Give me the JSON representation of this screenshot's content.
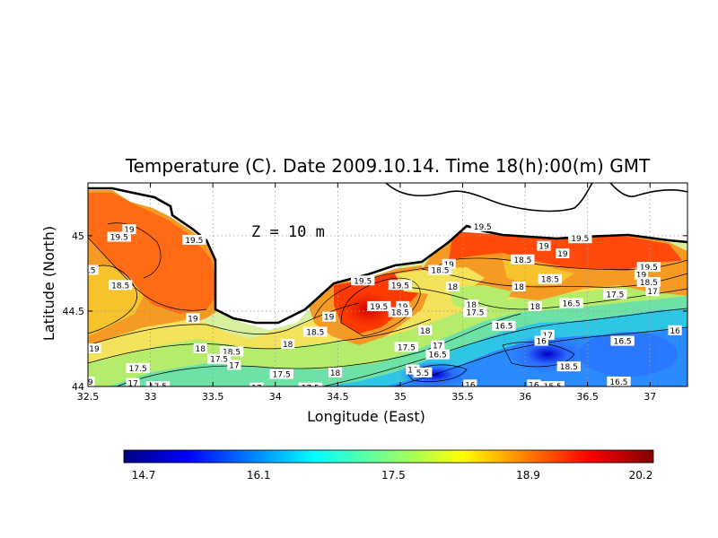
{
  "chart_data": {
    "type": "heatmap",
    "title": "Temperature (C). Date 2009.10.14. Time 18(h):00(m) GMT",
    "xlabel": "Longitude (East)",
    "ylabel": "Latitude (North)",
    "annotation": "Z = 10 m",
    "xlim": [
      32.5,
      37.3
    ],
    "ylim": [
      44.0,
      45.35
    ],
    "x_ticks": [
      "32.5",
      "33",
      "33.5",
      "34",
      "34.5",
      "35",
      "35.5",
      "36",
      "36.5",
      "37"
    ],
    "y_ticks": [
      "44",
      "44.5",
      "45"
    ],
    "x_tick_values": [
      32.5,
      33,
      33.5,
      34,
      34.5,
      35,
      35.5,
      36,
      36.5,
      37
    ],
    "y_tick_values": [
      44,
      44.5,
      45
    ],
    "grid": true,
    "colorbar": {
      "min": 14.7,
      "max": 20.2,
      "tick_labels": [
        "14.7",
        "16.1",
        "17.5",
        "18.9",
        "20.2"
      ],
      "tick_values": [
        14.7,
        16.1,
        17.5,
        18.9,
        20.2
      ],
      "placement": "bottom"
    },
    "contour_labels": [
      {
        "text": "19",
        "lon": 32.83,
        "lat": 45.04
      },
      {
        "text": "19.5",
        "lon": 32.75,
        "lat": 44.99
      },
      {
        "text": "19.5",
        "lon": 33.35,
        "lat": 44.97
      },
      {
        "text": "18.5",
        "lon": 32.76,
        "lat": 44.67
      },
      {
        "text": ".5",
        "lon": 32.53,
        "lat": 44.77
      },
      {
        "text": "19",
        "lon": 33.34,
        "lat": 44.45
      },
      {
        "text": "19",
        "lon": 32.55,
        "lat": 44.25
      },
      {
        "text": "18",
        "lon": 33.4,
        "lat": 44.25
      },
      {
        "text": "18.5",
        "lon": 33.65,
        "lat": 44.23
      },
      {
        "text": "17.5",
        "lon": 33.55,
        "lat": 44.18
      },
      {
        "text": "17",
        "lon": 33.67,
        "lat": 44.14
      },
      {
        "text": "17.5",
        "lon": 32.9,
        "lat": 44.12
      },
      {
        "text": "17",
        "lon": 32.86,
        "lat": 44.02
      },
      {
        "text": "17.5",
        "lon": 33.06,
        "lat": 44.0
      },
      {
        "text": "9",
        "lon": 32.52,
        "lat": 44.03
      },
      {
        "text": "18",
        "lon": 34.1,
        "lat": 44.28
      },
      {
        "text": "17.5",
        "lon": 34.05,
        "lat": 44.08
      },
      {
        "text": "17",
        "lon": 33.85,
        "lat": 43.99
      },
      {
        "text": "17.5",
        "lon": 34.28,
        "lat": 43.99
      },
      {
        "text": "18",
        "lon": 34.48,
        "lat": 44.09
      },
      {
        "text": "18.5",
        "lon": 34.32,
        "lat": 44.36
      },
      {
        "text": "19",
        "lon": 34.43,
        "lat": 44.46
      },
      {
        "text": "19.5",
        "lon": 34.7,
        "lat": 44.7
      },
      {
        "text": "19.5",
        "lon": 34.83,
        "lat": 44.53
      },
      {
        "text": "19.5",
        "lon": 35.0,
        "lat": 44.67
      },
      {
        "text": "19",
        "lon": 35.02,
        "lat": 44.53
      },
      {
        "text": "18.5",
        "lon": 35.0,
        "lat": 44.49
      },
      {
        "text": "18",
        "lon": 35.2,
        "lat": 44.37
      },
      {
        "text": "17.5",
        "lon": 35.05,
        "lat": 44.26
      },
      {
        "text": "17",
        "lon": 35.3,
        "lat": 44.27
      },
      {
        "text": "16.5",
        "lon": 35.3,
        "lat": 44.21
      },
      {
        "text": "16",
        "lon": 35.1,
        "lat": 44.11
      },
      {
        "text": "5.5",
        "lon": 35.18,
        "lat": 44.09
      },
      {
        "text": "16",
        "lon": 35.56,
        "lat": 44.01
      },
      {
        "text": "19",
        "lon": 35.39,
        "lat": 44.81
      },
      {
        "text": "18.5",
        "lon": 35.32,
        "lat": 44.77
      },
      {
        "text": "18",
        "lon": 35.42,
        "lat": 44.66
      },
      {
        "text": "18",
        "lon": 35.57,
        "lat": 44.54
      },
      {
        "text": "17.5",
        "lon": 35.6,
        "lat": 44.49
      },
      {
        "text": "16.5",
        "lon": 35.83,
        "lat": 44.4
      },
      {
        "text": "19.5",
        "lon": 35.66,
        "lat": 45.06
      },
      {
        "text": "18.5",
        "lon": 35.98,
        "lat": 44.84
      },
      {
        "text": "19",
        "lon": 36.15,
        "lat": 44.93
      },
      {
        "text": "18",
        "lon": 35.95,
        "lat": 44.66
      },
      {
        "text": "18",
        "lon": 36.08,
        "lat": 44.53
      },
      {
        "text": "18.5",
        "lon": 36.2,
        "lat": 44.71
      },
      {
        "text": "16.5",
        "lon": 36.37,
        "lat": 44.55
      },
      {
        "text": "17",
        "lon": 36.18,
        "lat": 44.34
      },
      {
        "text": "16",
        "lon": 36.13,
        "lat": 44.3
      },
      {
        "text": "18.5",
        "lon": 36.35,
        "lat": 44.13
      },
      {
        "text": "16",
        "lon": 36.07,
        "lat": 44.01
      },
      {
        "text": "15.5",
        "lon": 36.22,
        "lat": 44.0
      },
      {
        "text": "19.5",
        "lon": 36.44,
        "lat": 44.98
      },
      {
        "text": "19",
        "lon": 36.3,
        "lat": 44.88
      },
      {
        "text": "17.5",
        "lon": 36.72,
        "lat": 44.61
      },
      {
        "text": "16.5",
        "lon": 36.78,
        "lat": 44.3
      },
      {
        "text": "16.5",
        "lon": 36.75,
        "lat": 44.03
      },
      {
        "text": "19.5",
        "lon": 36.99,
        "lat": 44.79
      },
      {
        "text": "19",
        "lon": 36.93,
        "lat": 44.74
      },
      {
        "text": "18.5",
        "lon": 36.99,
        "lat": 44.69
      },
      {
        "text": "17",
        "lon": 37.02,
        "lat": 44.63
      },
      {
        "text": "16",
        "lon": 37.2,
        "lat": 44.37
      }
    ]
  }
}
